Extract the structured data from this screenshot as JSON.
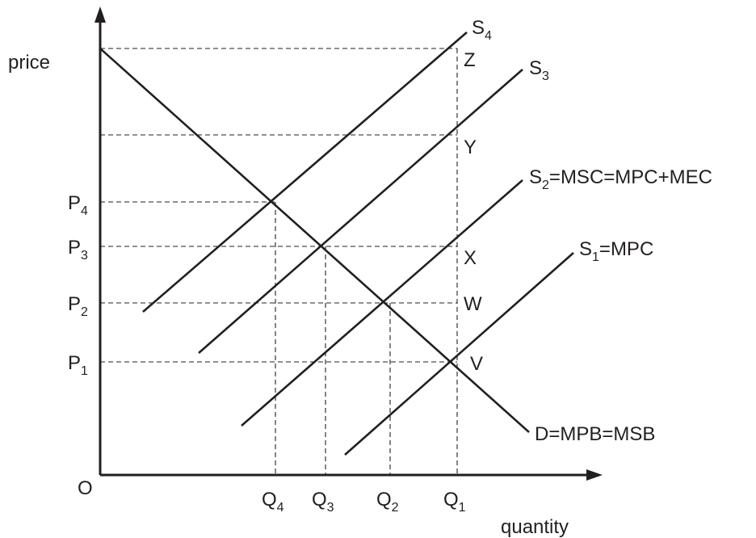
{
  "axes": {
    "y_label": "price",
    "x_label": "quantity",
    "origin": "O"
  },
  "price_levels": [
    {
      "main": "P",
      "sub": "4"
    },
    {
      "main": "P",
      "sub": "3"
    },
    {
      "main": "P",
      "sub": "2"
    },
    {
      "main": "P",
      "sub": "1"
    }
  ],
  "quantity_levels": [
    {
      "main": "Q",
      "sub": "4"
    },
    {
      "main": "Q",
      "sub": "3"
    },
    {
      "main": "Q",
      "sub": "2"
    },
    {
      "main": "Q",
      "sub": "1"
    }
  ],
  "curves": {
    "demand": "D=MPB=MSB",
    "s1": {
      "main": "S",
      "sub": "1",
      "rest": "=MPC"
    },
    "s2": {
      "main": "S",
      "sub": "2",
      "rest": "=MSC=MPC+MEC"
    },
    "s3": {
      "main": "S",
      "sub": "3",
      "rest": ""
    },
    "s4": {
      "main": "S",
      "sub": "4",
      "rest": ""
    }
  },
  "points": {
    "z": "Z",
    "y": "Y",
    "x": "X",
    "w": "W",
    "v": "V"
  }
}
